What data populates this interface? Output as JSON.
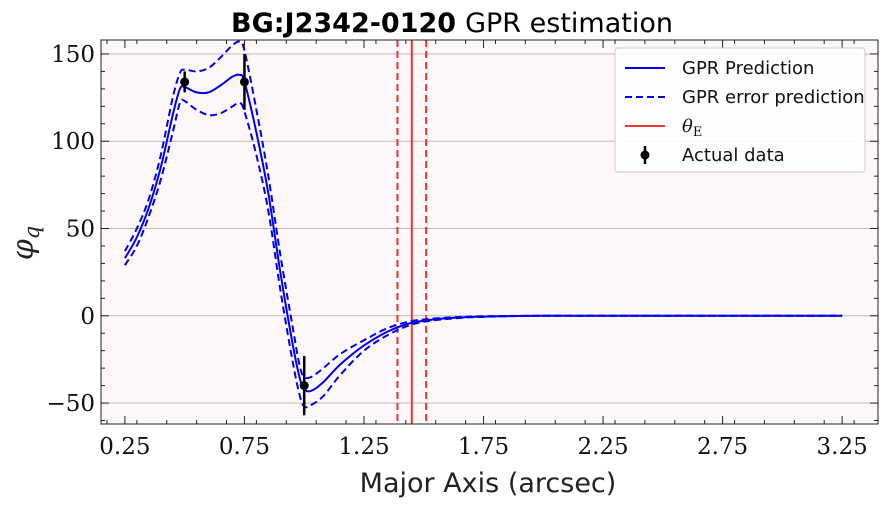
{
  "chart_data": {
    "type": "line",
    "title_bold": "BG:J2342-0120",
    "title_rest": "GPR estimation",
    "xlabel": "Major Axis (arcsec)",
    "ylabel_symbol": "φ",
    "ylabel_subscript": "q",
    "xlim": [
      0.15,
      3.4
    ],
    "ylim": [
      -62,
      158
    ],
    "xticks": [
      0.25,
      0.75,
      1.25,
      1.75,
      2.25,
      2.75,
      3.25
    ],
    "xtick_labels": [
      "0.25",
      "0.75",
      "1.25",
      "1.75",
      "2.25",
      "2.75",
      "3.25"
    ],
    "yticks": [
      -50,
      0,
      50,
      100,
      150
    ],
    "ytick_labels": [
      "−50",
      "0",
      "50",
      "100",
      "150"
    ],
    "grid": "horizontal",
    "legend_position": "top-right",
    "colors": {
      "prediction": "#0000ee",
      "error": "#0000ee",
      "theta": "#ee3333",
      "data": "#000000",
      "plot_background": "#fdf8f7",
      "grid": "#bbbbbb"
    },
    "series": [
      {
        "name": "GPR Prediction",
        "style": "solid",
        "points": [
          [
            0.25,
            33
          ],
          [
            0.3,
            45
          ],
          [
            0.35,
            62
          ],
          [
            0.4,
            85
          ],
          [
            0.45,
            115
          ],
          [
            0.48,
            130
          ],
          [
            0.5,
            131
          ],
          [
            0.55,
            128
          ],
          [
            0.6,
            128
          ],
          [
            0.65,
            132
          ],
          [
            0.7,
            137
          ],
          [
            0.73,
            138
          ],
          [
            0.75,
            134
          ],
          [
            0.8,
            105
          ],
          [
            0.85,
            70
          ],
          [
            0.9,
            25
          ],
          [
            0.95,
            -15
          ],
          [
            0.98,
            -35
          ],
          [
            1.0,
            -42
          ],
          [
            1.03,
            -43
          ],
          [
            1.08,
            -38
          ],
          [
            1.15,
            -28
          ],
          [
            1.25,
            -17
          ],
          [
            1.35,
            -9
          ],
          [
            1.45,
            -4
          ],
          [
            1.55,
            -2
          ],
          [
            1.65,
            -1
          ],
          [
            1.75,
            -0.5
          ],
          [
            2.0,
            0
          ],
          [
            2.5,
            0
          ],
          [
            3.25,
            0
          ]
        ]
      },
      {
        "name": "GPR error prediction",
        "style": "dashed",
        "points": [
          [
            0.25,
            37
          ],
          [
            0.3,
            50
          ],
          [
            0.35,
            67
          ],
          [
            0.4,
            92
          ],
          [
            0.45,
            125
          ],
          [
            0.48,
            139
          ],
          [
            0.5,
            141
          ],
          [
            0.55,
            140
          ],
          [
            0.6,
            142
          ],
          [
            0.65,
            148
          ],
          [
            0.7,
            155
          ],
          [
            0.73,
            157
          ],
          [
            0.75,
            152
          ],
          [
            0.8,
            118
          ],
          [
            0.85,
            80
          ],
          [
            0.9,
            35
          ],
          [
            0.95,
            -5
          ],
          [
            0.98,
            -28
          ],
          [
            1.0,
            -35
          ],
          [
            1.03,
            -35
          ],
          [
            1.08,
            -30
          ],
          [
            1.15,
            -22
          ],
          [
            1.25,
            -14
          ],
          [
            1.35,
            -7
          ],
          [
            1.45,
            -3
          ],
          [
            1.55,
            -1.5
          ],
          [
            1.65,
            -0.7
          ],
          [
            1.75,
            -0.3
          ],
          [
            2.0,
            0
          ],
          [
            2.5,
            0
          ],
          [
            3.25,
            0
          ]
        ]
      },
      {
        "name": "",
        "style": "dashed",
        "points": [
          [
            0.25,
            29
          ],
          [
            0.3,
            40
          ],
          [
            0.35,
            57
          ],
          [
            0.4,
            78
          ],
          [
            0.45,
            105
          ],
          [
            0.48,
            122
          ],
          [
            0.5,
            123
          ],
          [
            0.55,
            118
          ],
          [
            0.6,
            115
          ],
          [
            0.65,
            116
          ],
          [
            0.7,
            120
          ],
          [
            0.73,
            122
          ],
          [
            0.75,
            117
          ],
          [
            0.8,
            92
          ],
          [
            0.85,
            60
          ],
          [
            0.9,
            15
          ],
          [
            0.95,
            -25
          ],
          [
            0.98,
            -45
          ],
          [
            1.0,
            -52
          ],
          [
            1.03,
            -51
          ],
          [
            1.08,
            -46
          ],
          [
            1.15,
            -34
          ],
          [
            1.25,
            -20
          ],
          [
            1.35,
            -11
          ],
          [
            1.45,
            -5
          ],
          [
            1.55,
            -2.5
          ],
          [
            1.65,
            -1.3
          ],
          [
            1.75,
            -0.6
          ],
          [
            2.0,
            0
          ],
          [
            2.5,
            0
          ],
          [
            3.25,
            0
          ]
        ]
      }
    ],
    "theta_E": {
      "name": "θE",
      "value": 1.45,
      "lower": 1.39,
      "upper": 1.51
    },
    "actual_data": {
      "name": "Actual data",
      "points": [
        {
          "x": 0.5,
          "y": 134,
          "err": 6
        },
        {
          "x": 0.75,
          "y": 134,
          "err": 16
        },
        {
          "x": 1.0,
          "y": -40,
          "err": 17
        }
      ]
    }
  }
}
